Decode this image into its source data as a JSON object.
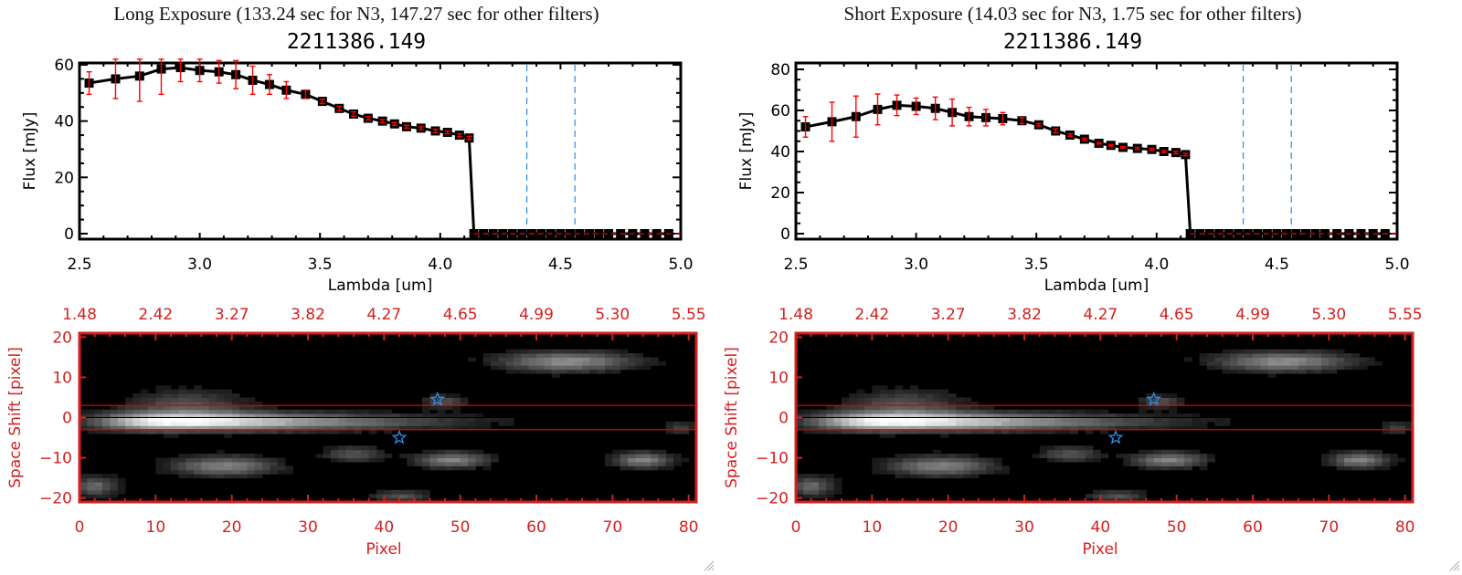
{
  "panels": [
    {
      "title": "Long Exposure (133.24 sec for N3, 147.27 sec for other filters)",
      "object_id": "2211386.149"
    },
    {
      "title": "Short Exposure (14.03 sec for N3, 1.75 sec for other filters)",
      "object_id": "2211386.149"
    }
  ],
  "colors": {
    "axis": "#000000",
    "errorbar": "#ff0000",
    "image_axis": "#d42020",
    "band_marker": "#2a8ae6",
    "aperture_line": "#e00000"
  },
  "chart_data": [
    {
      "type": "line",
      "title": "2211386.149",
      "xlabel": "Lambda [um]",
      "ylabel": "Flux [mJy]",
      "xlim": [
        2.5,
        5.0
      ],
      "ylim": [
        -2,
        62
      ],
      "xticks": [
        "2.5",
        "3.0",
        "3.5",
        "4.0",
        "4.5",
        "5.0"
      ],
      "yticks": [
        "0",
        "20",
        "40",
        "60"
      ],
      "ytick_values": [
        0,
        20,
        40,
        60
      ],
      "vlines": [
        4.36,
        4.56
      ],
      "zero_line": 0,
      "series": [
        {
          "name": "flux",
          "x": [
            2.54,
            2.65,
            2.75,
            2.84,
            2.92,
            3.0,
            3.08,
            3.15,
            3.22,
            3.29,
            3.36,
            3.44,
            3.51,
            3.58,
            3.64,
            3.7,
            3.76,
            3.81,
            3.86,
            3.92,
            3.98,
            4.03,
            4.08,
            4.12,
            4.14,
            4.18,
            4.22,
            4.26,
            4.3,
            4.34,
            4.38,
            4.42,
            4.46,
            4.5,
            4.54,
            4.58,
            4.62,
            4.66,
            4.7,
            4.75,
            4.8,
            4.85,
            4.9,
            4.95
          ],
          "y": [
            53.5,
            55,
            56,
            58.5,
            59,
            58,
            57.5,
            56.5,
            54.5,
            53,
            51,
            49.5,
            47,
            44.5,
            42.5,
            41,
            40,
            39,
            38,
            37.5,
            36.5,
            36,
            35,
            34,
            0,
            0,
            0,
            0,
            0,
            0,
            0,
            0,
            0,
            0,
            0,
            0,
            0,
            0,
            0,
            0,
            0,
            0,
            0,
            0
          ],
          "err": [
            4,
            7,
            9,
            9,
            5,
            4,
            4,
            5,
            5,
            3.5,
            3,
            1.5,
            0.8,
            0.8,
            0.8,
            0.6,
            0.5,
            0.5,
            0.5,
            0.5,
            0.6,
            0.5,
            0.5,
            0.6,
            0,
            0,
            0,
            0,
            0,
            0,
            0,
            0,
            0,
            0,
            0,
            0,
            0,
            0,
            0,
            0,
            0,
            0,
            0,
            0
          ]
        }
      ]
    },
    {
      "type": "heatmap",
      "xlabel": "Pixel",
      "ylabel": "Space Shift [pixel]",
      "xlim": [
        0,
        81
      ],
      "ylim": [
        -21,
        21
      ],
      "xticks": [
        "0",
        "10",
        "20",
        "30",
        "40",
        "50",
        "60",
        "70",
        "80"
      ],
      "xtick_values": [
        0,
        10,
        20,
        30,
        40,
        50,
        60,
        70,
        80
      ],
      "yticks": [
        "-20",
        "-10",
        "0",
        "10",
        "20"
      ],
      "ytick_values": [
        -20,
        -10,
        0,
        10,
        20
      ],
      "top_xticks": [
        "1.48",
        "2.42",
        "3.27",
        "3.82",
        "4.27",
        "4.65",
        "4.99",
        "5.30",
        "5.55"
      ],
      "aperture": [
        -3,
        3
      ],
      "markers": [
        {
          "x": 47,
          "y": 4.5,
          "symbol": "star"
        },
        {
          "x": 42,
          "y": -5,
          "symbol": "star"
        }
      ]
    },
    {
      "type": "line",
      "title": "2211386.149",
      "xlabel": "Lambda [um]",
      "ylabel": "Flux [mJy]",
      "xlim": [
        2.5,
        5.0
      ],
      "ylim": [
        -2,
        82
      ],
      "xticks": [
        "2.5",
        "3.0",
        "3.5",
        "4.0",
        "4.5",
        "5.0"
      ],
      "yticks": [
        "0",
        "20",
        "40",
        "60",
        "80"
      ],
      "ytick_values": [
        0,
        20,
        40,
        60,
        80
      ],
      "vlines": [
        4.36,
        4.56
      ],
      "zero_line": 0,
      "series": [
        {
          "name": "flux",
          "x": [
            2.54,
            2.65,
            2.75,
            2.84,
            2.92,
            3.0,
            3.08,
            3.15,
            3.22,
            3.29,
            3.36,
            3.44,
            3.51,
            3.58,
            3.64,
            3.7,
            3.76,
            3.81,
            3.86,
            3.92,
            3.98,
            4.03,
            4.08,
            4.12,
            4.14,
            4.18,
            4.22,
            4.26,
            4.3,
            4.34,
            4.38,
            4.42,
            4.46,
            4.5,
            4.54,
            4.58,
            4.62,
            4.66,
            4.7,
            4.75,
            4.8,
            4.85,
            4.9,
            4.95
          ],
          "y": [
            52,
            54.5,
            57,
            60.5,
            62.5,
            62,
            61,
            59,
            57,
            56.5,
            56,
            55,
            53,
            50,
            48,
            46,
            44,
            43,
            42,
            41.5,
            41,
            40,
            39.5,
            38.5,
            0,
            0,
            0,
            0,
            0,
            0,
            0,
            0,
            0,
            0,
            0,
            0,
            0,
            0,
            0,
            0,
            0,
            0,
            0,
            0
          ],
          "err": [
            5,
            9.5,
            10,
            7.5,
            5,
            4,
            5.5,
            6.5,
            4.5,
            4,
            3,
            1.5,
            0.6,
            1,
            0.6,
            0.5,
            0.4,
            0.4,
            0.4,
            0.5,
            0.5,
            0.5,
            0.6,
            0.6,
            0,
            0,
            0,
            0,
            0,
            0,
            0,
            0,
            0,
            0,
            0,
            0,
            0,
            0,
            0,
            0,
            0,
            0,
            0,
            0
          ]
        }
      ]
    },
    {
      "type": "heatmap",
      "xlabel": "Pixel",
      "ylabel": "Space Shift [pixel]",
      "xlim": [
        0,
        81
      ],
      "ylim": [
        -21,
        21
      ],
      "xticks": [
        "0",
        "10",
        "20",
        "30",
        "40",
        "50",
        "60",
        "70",
        "80"
      ],
      "xtick_values": [
        0,
        10,
        20,
        30,
        40,
        50,
        60,
        70,
        80
      ],
      "yticks": [
        "-20",
        "-10",
        "0",
        "10",
        "20"
      ],
      "ytick_values": [
        -20,
        -10,
        0,
        10,
        20
      ],
      "top_xticks": [
        "1.48",
        "2.42",
        "3.27",
        "3.82",
        "4.27",
        "4.65",
        "4.99",
        "5.30",
        "5.55"
      ],
      "aperture": [
        -3,
        3
      ],
      "markers": [
        {
          "x": 47,
          "y": 4.5,
          "symbol": "star"
        },
        {
          "x": 42,
          "y": -5,
          "symbol": "star"
        }
      ]
    }
  ]
}
